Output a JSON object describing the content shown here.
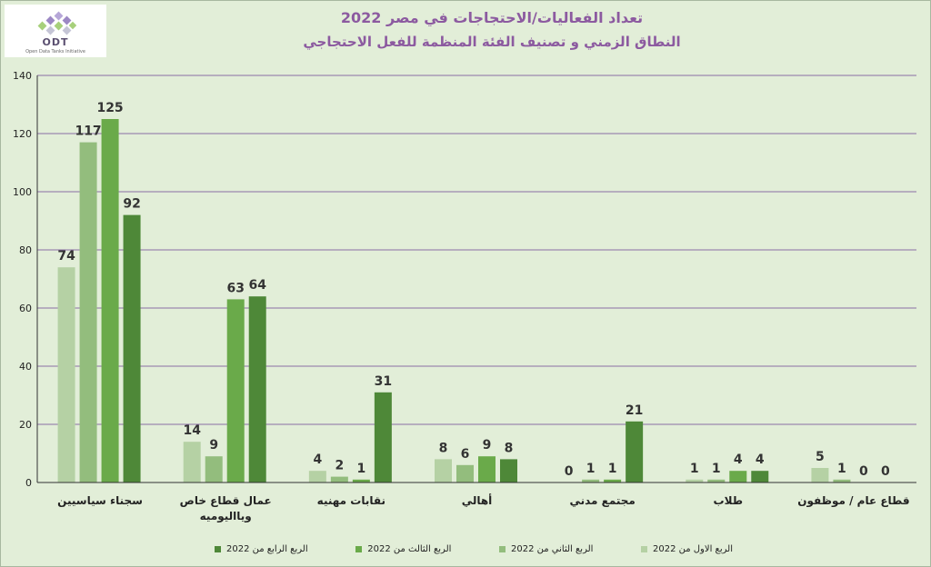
{
  "logo": {
    "name": "ODT",
    "tagline": "Open Data Tanks Initiative"
  },
  "colors": {
    "background": "#e2eed8",
    "gridline": "#8b6fa5",
    "title": "#8c5aa0",
    "series": [
      "#b5d1a4",
      "#93bd7d",
      "#6aaa4a",
      "#4e8838"
    ]
  },
  "chart_data": {
    "type": "bar",
    "title": "تعداد الفعاليات/الاحتجاجات في مصر 2022",
    "subtitle": "النطاق الزمني و تصنيف الفئة المنظمة للفعل الاحتجاجي",
    "xlabel": "",
    "ylabel": "",
    "ylim": [
      0,
      140
    ],
    "yticks": [
      "0",
      "20",
      "40",
      "60",
      "80",
      "100",
      "120",
      "140"
    ],
    "grid": true,
    "legend_position": "bottom",
    "categories": [
      "سجناء سياسيين",
      "عمال قطاع خاص ويااليوميه",
      "نقابات مهنيه",
      "أهالي",
      "مجتمع مدني",
      "طلاب",
      "قطاع عام / موظفون"
    ],
    "series": [
      {
        "name": "الربع الاول من 2022",
        "values": [
          74,
          14,
          4,
          8,
          0,
          1,
          5
        ]
      },
      {
        "name": "الربع الثاني من 2022",
        "values": [
          117,
          9,
          2,
          6,
          1,
          1,
          1
        ]
      },
      {
        "name": "الربع الثالث من 2022",
        "values": [
          125,
          63,
          1,
          9,
          1,
          4,
          0
        ]
      },
      {
        "name": "الربع الرابع من 2022",
        "values": [
          92,
          64,
          31,
          8,
          21,
          4,
          0
        ]
      }
    ]
  }
}
